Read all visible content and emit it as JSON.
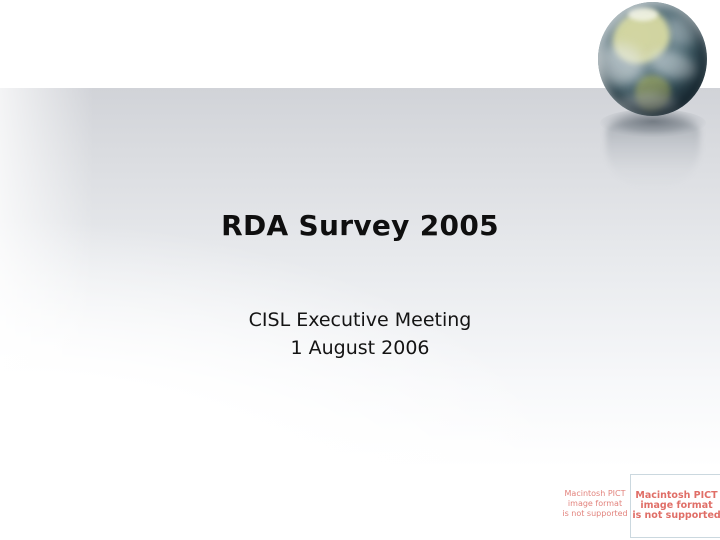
{
  "slide": {
    "title": "RDA Survey 2005",
    "subtitle_line1": "CISL Executive Meeting",
    "subtitle_line2": "1 August 2006"
  },
  "pict_small": {
    "line1": "Macintosh PICT",
    "line2": "image format",
    "line3": "is not supported"
  },
  "pict_large": {
    "line1": "Macintosh PICT",
    "line2": "image format",
    "line3": "is not supported"
  },
  "icons": {
    "globe": "earth-globe"
  },
  "colors": {
    "title_text": "#0f0f0f",
    "body_text": "#141414",
    "floor_gray": "#d1d3d8",
    "pict_text_small": "#e2837d",
    "pict_text_large": "#e06e67",
    "pict_border": "#cbd8df"
  }
}
